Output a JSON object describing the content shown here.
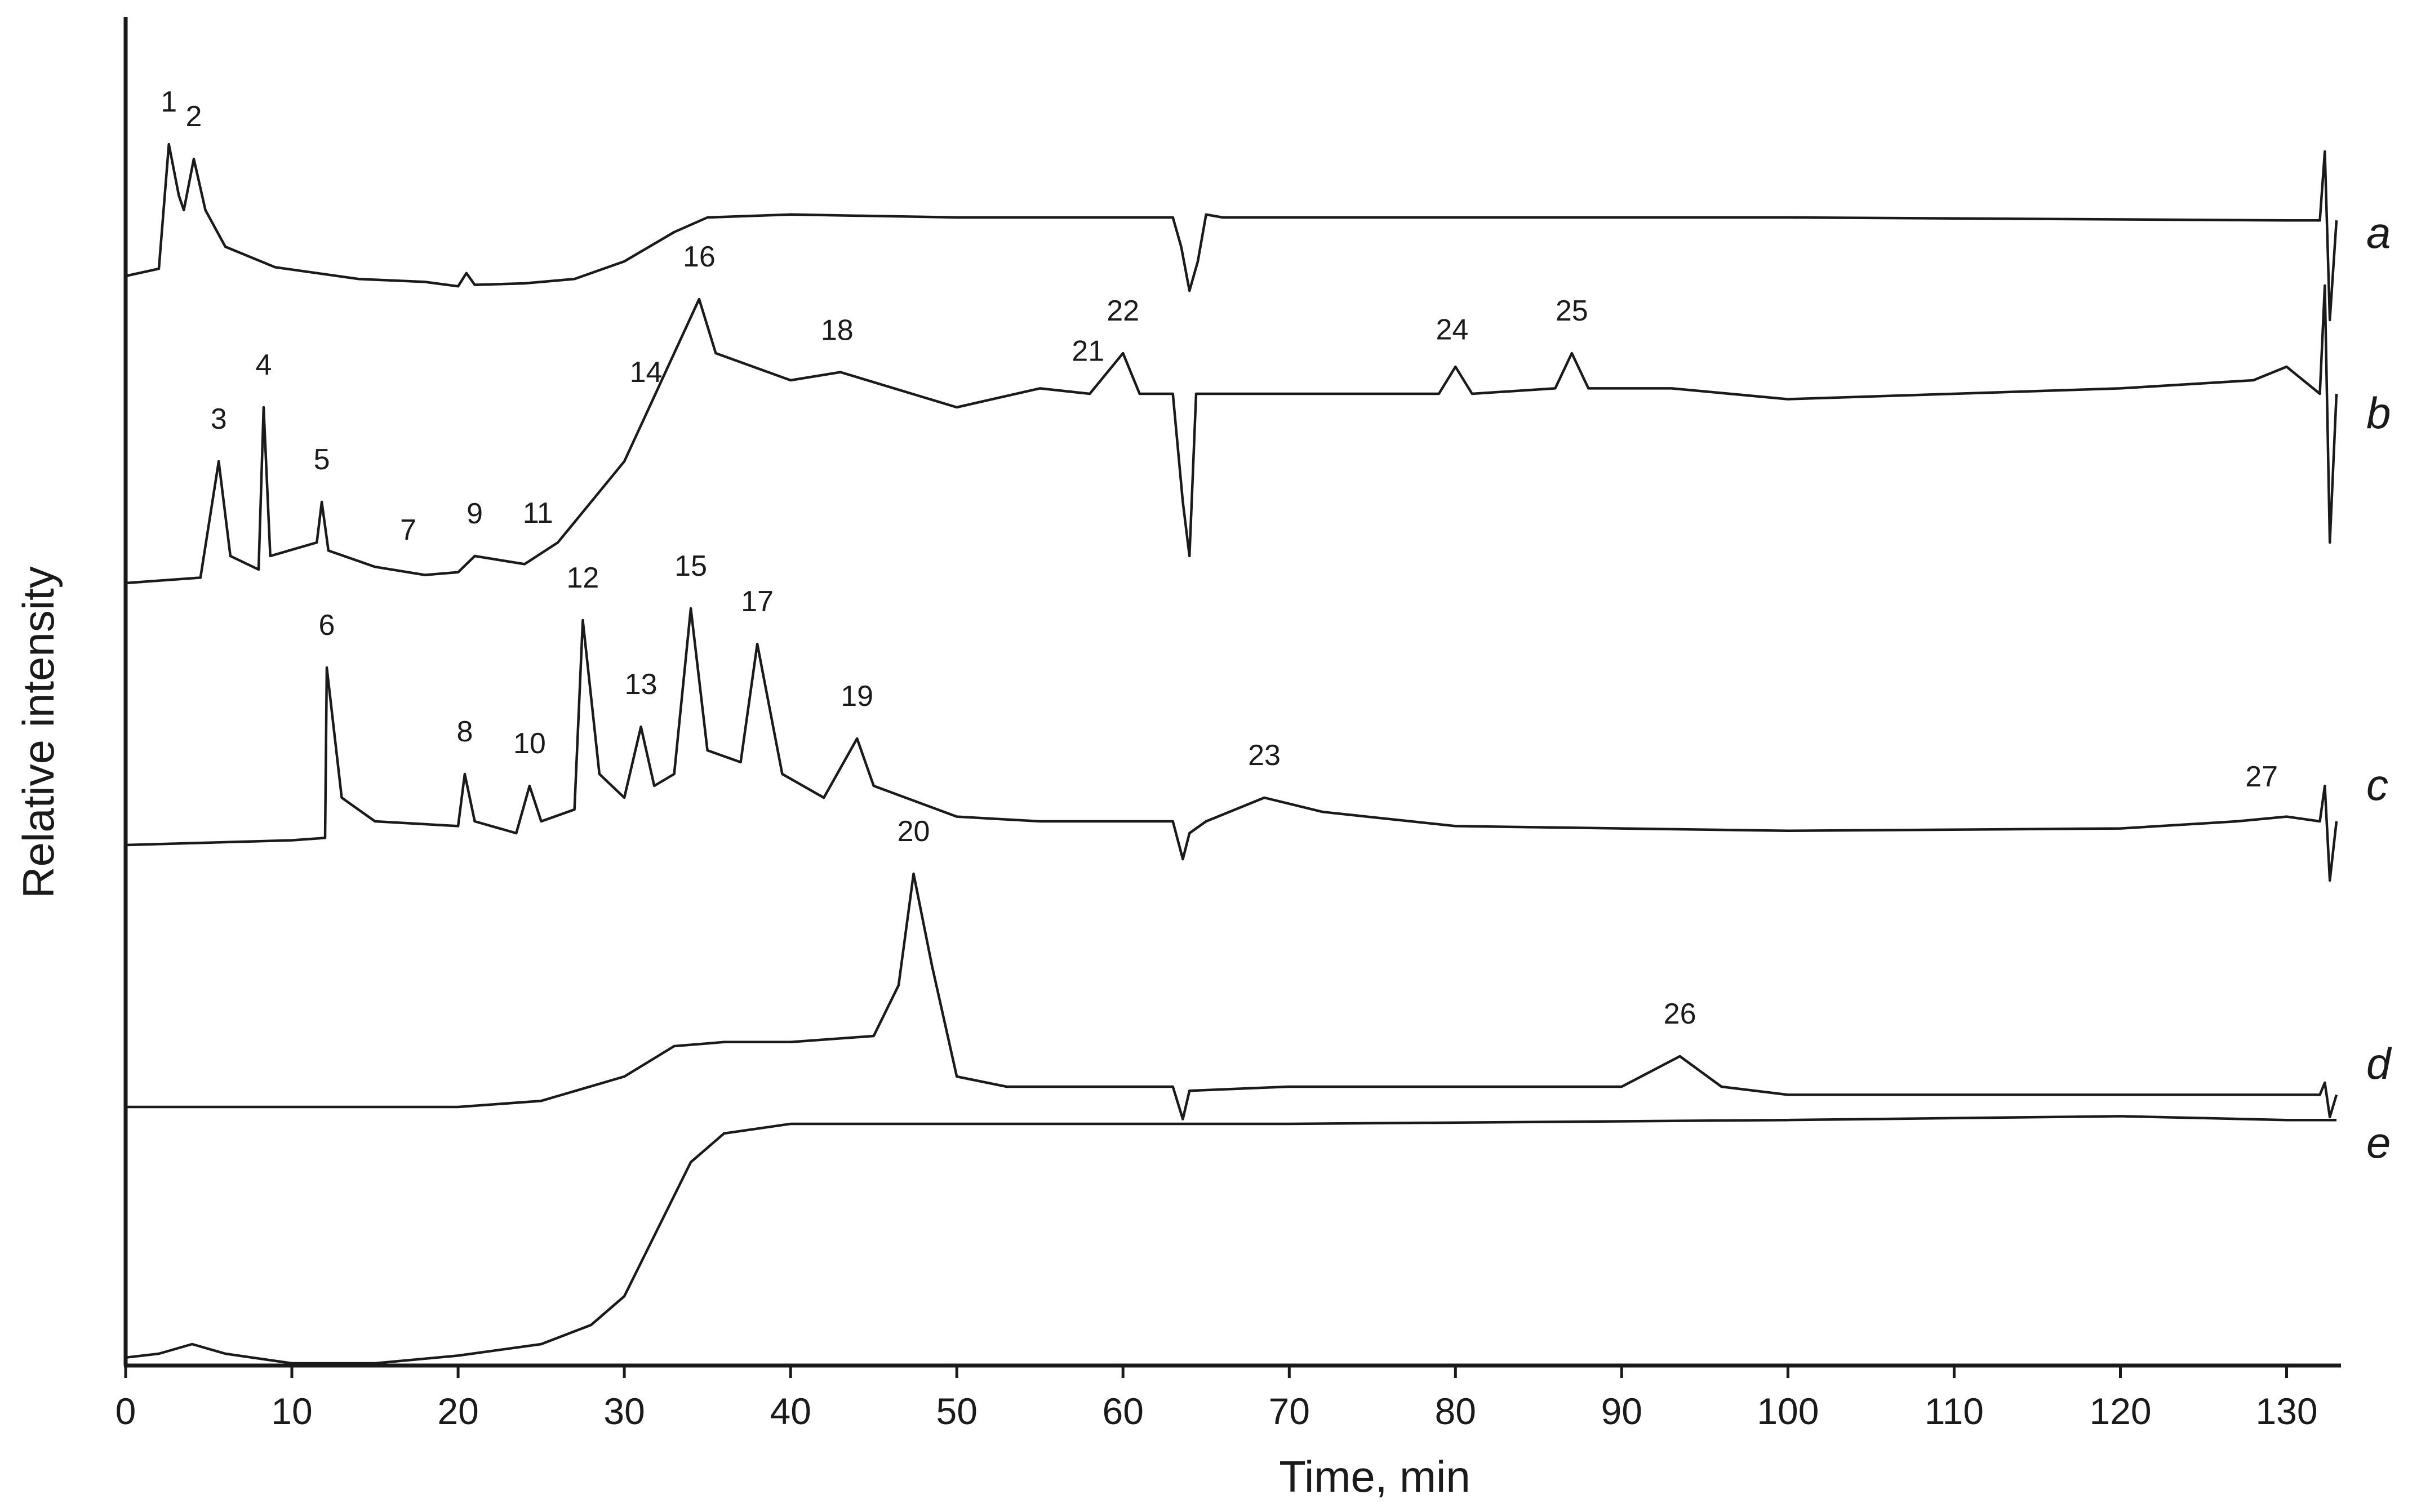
{
  "chart_data": {
    "type": "line",
    "title": "",
    "xlabel": "Time, min",
    "ylabel": "Relative intensity",
    "xlim": [
      0,
      133
    ],
    "x_ticks": [
      "0",
      "10",
      "20",
      "30",
      "40",
      "50",
      "60",
      "70",
      "80",
      "90",
      "100",
      "110",
      "120",
      "130"
    ],
    "y_ticks": [],
    "grid": false,
    "legend": "none",
    "y_units": "relative (arbitrary, offset traces)",
    "series": [
      {
        "name": "a",
        "points": [
          [
            0,
            0
          ],
          [
            2.0,
            0.05
          ],
          [
            2.6,
            0.9
          ],
          [
            3.2,
            0.55
          ],
          [
            3.5,
            0.45
          ],
          [
            4.1,
            0.8
          ],
          [
            4.8,
            0.45
          ],
          [
            6,
            0.2
          ],
          [
            9,
            0.06
          ],
          [
            14,
            -0.02
          ],
          [
            18,
            -0.04
          ],
          [
            20,
            -0.07
          ],
          [
            20.5,
            0.02
          ],
          [
            21,
            -0.06
          ],
          [
            24,
            -0.05
          ],
          [
            27,
            -0.02
          ],
          [
            30,
            0.1
          ],
          [
            33,
            0.3
          ],
          [
            35,
            0.4
          ],
          [
            40,
            0.42
          ],
          [
            50,
            0.4
          ],
          [
            63,
            0.4
          ],
          [
            63.5,
            0.2
          ],
          [
            64,
            -0.1
          ],
          [
            64.5,
            0.1
          ],
          [
            65,
            0.42
          ],
          [
            66,
            0.4
          ],
          [
            80,
            0.4
          ],
          [
            100,
            0.4
          ],
          [
            130,
            0.38
          ],
          [
            132,
            0.38
          ],
          [
            132.3,
            0.85
          ],
          [
            132.6,
            -0.3
          ],
          [
            133,
            0.38
          ]
        ],
        "peaks": [
          {
            "label": "1",
            "x": 2.6
          },
          {
            "label": "2",
            "x": 4.1
          }
        ]
      },
      {
        "name": "b",
        "points": [
          [
            0,
            0
          ],
          [
            4.5,
            0.02
          ],
          [
            5.6,
            0.45
          ],
          [
            6.3,
            0.1
          ],
          [
            8.0,
            0.05
          ],
          [
            8.3,
            0.65
          ],
          [
            8.7,
            0.1
          ],
          [
            11.5,
            0.15
          ],
          [
            11.8,
            0.3
          ],
          [
            12.2,
            0.12
          ],
          [
            15,
            0.06
          ],
          [
            18,
            0.03
          ],
          [
            20,
            0.04
          ],
          [
            21,
            0.1
          ],
          [
            24,
            0.07
          ],
          [
            26,
            0.15
          ],
          [
            28,
            0.3
          ],
          [
            30,
            0.45
          ],
          [
            31.5,
            0.65
          ],
          [
            33,
            0.85
          ],
          [
            34.5,
            1.05
          ],
          [
            35.5,
            0.85
          ],
          [
            40,
            0.75
          ],
          [
            43,
            0.78
          ],
          [
            50,
            0.65
          ],
          [
            55,
            0.72
          ],
          [
            58,
            0.7
          ],
          [
            60,
            0.85
          ],
          [
            61,
            0.7
          ],
          [
            63,
            0.7
          ],
          [
            63.6,
            0.3
          ],
          [
            64,
            0.1
          ],
          [
            64.4,
            0.7
          ],
          [
            70,
            0.7
          ],
          [
            79,
            0.7
          ],
          [
            80,
            0.8
          ],
          [
            81,
            0.7
          ],
          [
            86,
            0.72
          ],
          [
            87,
            0.85
          ],
          [
            88,
            0.72
          ],
          [
            93,
            0.72
          ],
          [
            100,
            0.68
          ],
          [
            110,
            0.7
          ],
          [
            120,
            0.72
          ],
          [
            128,
            0.75
          ],
          [
            130,
            0.8
          ],
          [
            132,
            0.7
          ],
          [
            132.3,
            1.1
          ],
          [
            132.6,
            0.15
          ],
          [
            133,
            0.7
          ]
        ],
        "peaks": [
          {
            "label": "3",
            "x": 5.6
          },
          {
            "label": "4",
            "x": 8.3
          },
          {
            "label": "5",
            "x": 11.8
          },
          {
            "label": "7",
            "x": 17
          },
          {
            "label": "9",
            "x": 21
          },
          {
            "label": "11",
            "x": 24.8
          },
          {
            "label": "14",
            "x": 31.3
          },
          {
            "label": "16",
            "x": 34.5
          },
          {
            "label": "18",
            "x": 42.8
          },
          {
            "label": "21",
            "x": 57.9
          },
          {
            "label": "22",
            "x": 60.0
          },
          {
            "label": "24",
            "x": 79.8
          },
          {
            "label": "25",
            "x": 87.0
          }
        ]
      },
      {
        "name": "c",
        "points": [
          [
            0,
            0
          ],
          [
            10,
            0.02
          ],
          [
            12,
            0.03
          ],
          [
            12.1,
            0.75
          ],
          [
            13,
            0.2
          ],
          [
            15,
            0.1
          ],
          [
            20,
            0.08
          ],
          [
            20.4,
            0.3
          ],
          [
            21,
            0.1
          ],
          [
            23.5,
            0.05
          ],
          [
            24.3,
            0.25
          ],
          [
            25,
            0.1
          ],
          [
            27,
            0.15
          ],
          [
            27.5,
            0.95
          ],
          [
            28.5,
            0.3
          ],
          [
            30,
            0.2
          ],
          [
            31,
            0.5
          ],
          [
            31.8,
            0.25
          ],
          [
            33,
            0.3
          ],
          [
            34,
            1.0
          ],
          [
            35,
            0.4
          ],
          [
            37,
            0.35
          ],
          [
            38,
            0.85
          ],
          [
            39.5,
            0.3
          ],
          [
            42,
            0.2
          ],
          [
            44,
            0.45
          ],
          [
            45,
            0.25
          ],
          [
            50,
            0.12
          ],
          [
            55,
            0.1
          ],
          [
            63,
            0.1
          ],
          [
            63.6,
            -0.06
          ],
          [
            64,
            0.05
          ],
          [
            65,
            0.1
          ],
          [
            68.5,
            0.2
          ],
          [
            72,
            0.14
          ],
          [
            80,
            0.08
          ],
          [
            100,
            0.06
          ],
          [
            120,
            0.07
          ],
          [
            127,
            0.1
          ],
          [
            130,
            0.12
          ],
          [
            132,
            0.1
          ],
          [
            132.3,
            0.25
          ],
          [
            132.6,
            -0.15
          ],
          [
            133,
            0.1
          ]
        ],
        "peaks": [
          {
            "label": "6",
            "x": 12.1
          },
          {
            "label": "8",
            "x": 20.4
          },
          {
            "label": "10",
            "x": 24.3
          },
          {
            "label": "12",
            "x": 27.5
          },
          {
            "label": "13",
            "x": 31.0
          },
          {
            "label": "15",
            "x": 34.0
          },
          {
            "label": "17",
            "x": 38.0
          },
          {
            "label": "19",
            "x": 44.0
          },
          {
            "label": "23",
            "x": 68.5
          },
          {
            "label": "27",
            "x": 128.5
          }
        ]
      },
      {
        "name": "d",
        "points": [
          [
            0,
            0
          ],
          [
            20,
            0
          ],
          [
            25,
            0.03
          ],
          [
            30,
            0.15
          ],
          [
            33,
            0.3
          ],
          [
            36,
            0.32
          ],
          [
            40,
            0.32
          ],
          [
            45,
            0.35
          ],
          [
            46.5,
            0.6
          ],
          [
            47.4,
            1.15
          ],
          [
            48.5,
            0.7
          ],
          [
            50,
            0.15
          ],
          [
            53,
            0.1
          ],
          [
            60,
            0.1
          ],
          [
            63,
            0.1
          ],
          [
            63.6,
            -0.06
          ],
          [
            64,
            0.08
          ],
          [
            70,
            0.1
          ],
          [
            80,
            0.1
          ],
          [
            90,
            0.1
          ],
          [
            93.5,
            0.25
          ],
          [
            96,
            0.1
          ],
          [
            100,
            0.06
          ],
          [
            110,
            0.06
          ],
          [
            120,
            0.06
          ],
          [
            130,
            0.06
          ],
          [
            132,
            0.06
          ],
          [
            132.3,
            0.12
          ],
          [
            132.6,
            -0.05
          ],
          [
            133,
            0.06
          ]
        ],
        "peaks": [
          {
            "label": "20",
            "x": 47.4
          },
          {
            "label": "26",
            "x": 93.5
          }
        ]
      },
      {
        "name": "e",
        "points": [
          [
            0,
            0.03
          ],
          [
            2,
            0.05
          ],
          [
            4,
            0.1
          ],
          [
            6,
            0.05
          ],
          [
            10,
            0
          ],
          [
            15,
            0
          ],
          [
            20,
            0.04
          ],
          [
            25,
            0.1
          ],
          [
            28,
            0.2
          ],
          [
            30,
            0.35
          ],
          [
            32,
            0.7
          ],
          [
            34,
            1.05
          ],
          [
            36,
            1.2
          ],
          [
            40,
            1.25
          ],
          [
            50,
            1.25
          ],
          [
            70,
            1.25
          ],
          [
            100,
            1.27
          ],
          [
            120,
            1.29
          ],
          [
            130,
            1.27
          ],
          [
            133,
            1.27
          ]
        ],
        "peaks": []
      }
    ]
  }
}
